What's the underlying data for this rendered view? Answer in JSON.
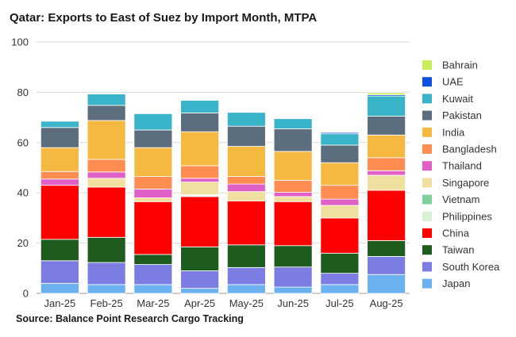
{
  "title": "Qatar: Exports to East of Suez by Import Month, MTPA",
  "source": "Source: Balance Point Research Cargo Tracking",
  "chart_data": {
    "type": "bar",
    "stacked": true,
    "title": "Qatar: Exports to East of Suez by Import Month, MTPA",
    "xlabel": "",
    "ylabel": "",
    "ylim": [
      0,
      100
    ],
    "yticks": [
      0,
      20,
      40,
      60,
      80,
      100
    ],
    "grid": true,
    "legend_position": "right",
    "categories": [
      "Jan-25",
      "Feb-25",
      "Mar-25",
      "Apr-25",
      "May-25",
      "Jun-25",
      "Jul-25",
      "Aug-25"
    ],
    "series": [
      {
        "name": "Japan",
        "color": "#6bb1ef",
        "values": [
          4.0,
          3.5,
          3.5,
          2.0,
          3.5,
          2.5,
          3.5,
          7.5
        ]
      },
      {
        "name": "South Korea",
        "color": "#7b7de3",
        "values": [
          9.0,
          8.8,
          8.0,
          7.0,
          6.8,
          8.0,
          4.5,
          7.2
        ]
      },
      {
        "name": "Taiwan",
        "color": "#1e5c1e",
        "values": [
          8.5,
          10.0,
          4.0,
          9.5,
          9.0,
          8.5,
          8.0,
          6.3
        ]
      },
      {
        "name": "China",
        "color": "#ff0000",
        "values": [
          21.5,
          20.0,
          21.0,
          20.0,
          17.5,
          17.5,
          14.0,
          20.0
        ]
      },
      {
        "name": "Philippines",
        "color": "#d9f0d3",
        "values": [
          0,
          0,
          0,
          0.5,
          0,
          0,
          0,
          0
        ]
      },
      {
        "name": "Vietnam",
        "color": "#7fcf9f",
        "values": [
          0,
          0,
          0,
          0.3,
          0,
          0,
          0,
          0
        ]
      },
      {
        "name": "Singapore",
        "color": "#f0e0a0",
        "values": [
          0,
          3.5,
          1.5,
          5.0,
          3.7,
          2.0,
          5.0,
          6.0
        ]
      },
      {
        "name": "Thailand",
        "color": "#e060c8",
        "values": [
          2.5,
          2.5,
          3.5,
          1.5,
          3.0,
          1.7,
          2.5,
          1.8
        ]
      },
      {
        "name": "Bangladesh",
        "color": "#ff8c50",
        "values": [
          3.0,
          5.0,
          5.0,
          5.0,
          3.0,
          4.8,
          5.5,
          5.2
        ]
      },
      {
        "name": "India",
        "color": "#f5b942",
        "values": [
          9.5,
          15.5,
          11.5,
          13.5,
          12.0,
          11.5,
          9.0,
          9.0
        ]
      },
      {
        "name": "Pakistan",
        "color": "#5c6e7e",
        "values": [
          8.0,
          6.0,
          7.0,
          7.5,
          8.0,
          9.0,
          7.0,
          7.5
        ]
      },
      {
        "name": "Kuwait",
        "color": "#3ab4c8",
        "values": [
          2.5,
          4.5,
          6.5,
          5.0,
          5.5,
          4.0,
          4.5,
          8.0
        ]
      },
      {
        "name": "UAE",
        "color": "#1052e0",
        "values": [
          0,
          0,
          0,
          0,
          0,
          0,
          0.5,
          0.5
        ]
      },
      {
        "name": "Bahrain",
        "color": "#c8ec5a",
        "values": [
          0,
          0,
          0,
          0,
          0,
          0,
          0,
          0.8
        ]
      }
    ]
  }
}
